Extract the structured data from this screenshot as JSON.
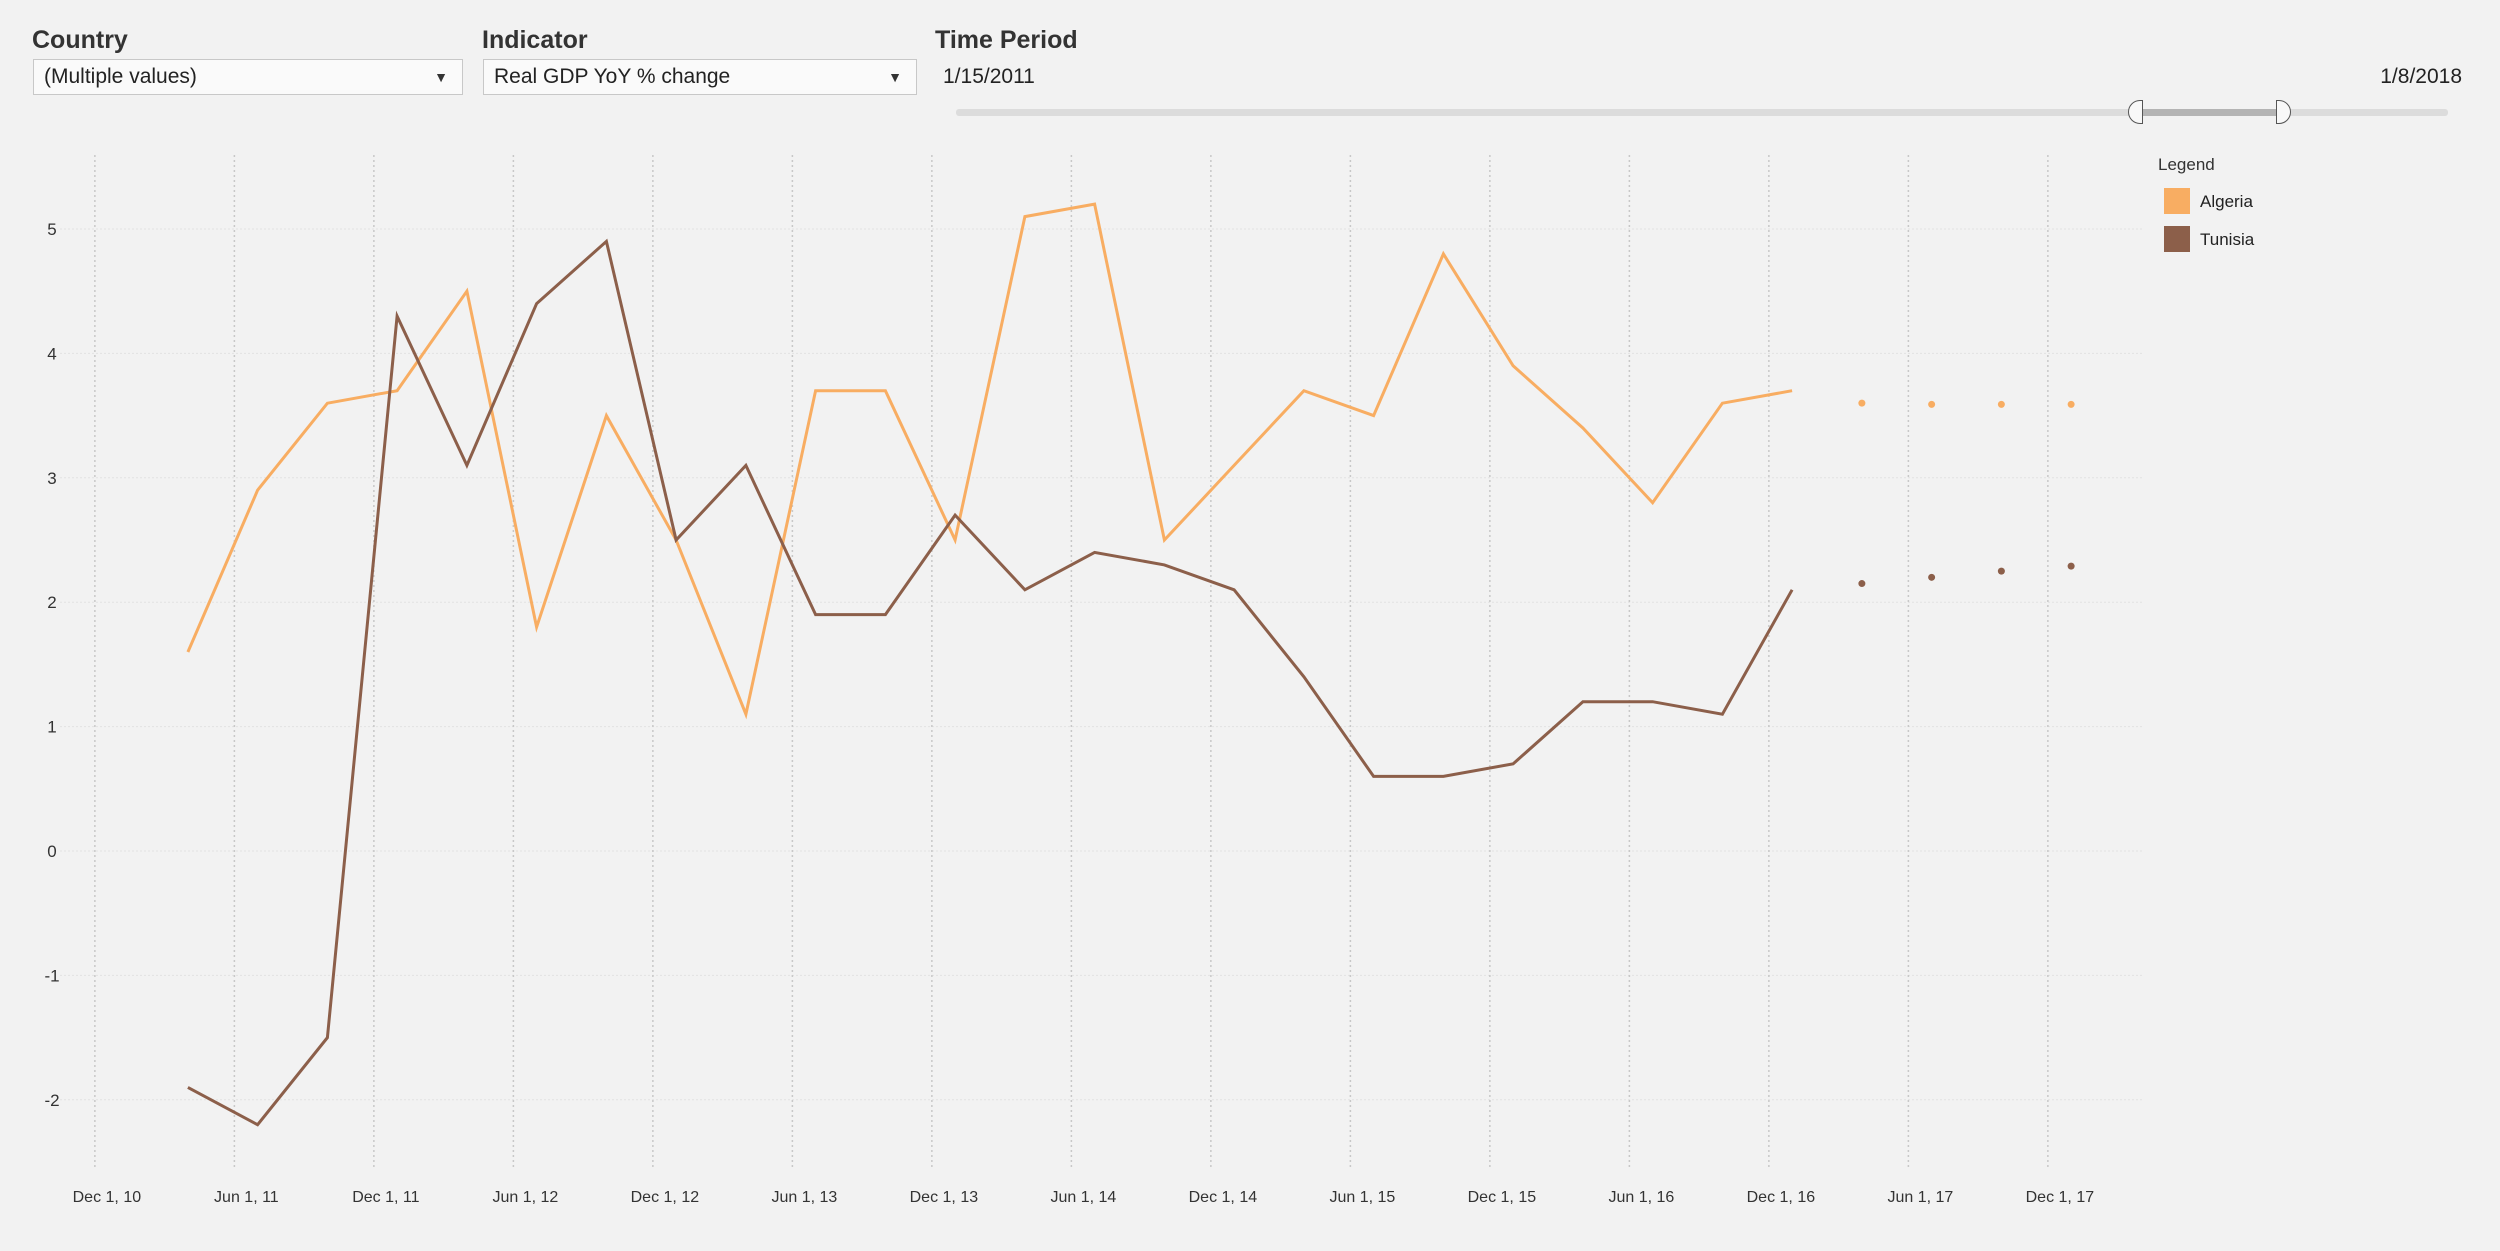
{
  "filters": {
    "country": {
      "label": "Country",
      "value": "(Multiple values)"
    },
    "indicator": {
      "label": "Indicator",
      "value": "Real GDP YoY % change"
    },
    "time_period": {
      "label": "Time Period",
      "start": "1/15/2011",
      "end": "1/8/2018"
    }
  },
  "legend": {
    "title": "Legend",
    "items": [
      {
        "label": "Algeria",
        "color": "#f8ad62"
      },
      {
        "label": "Tunisia",
        "color": "#8c5f4a"
      }
    ]
  },
  "chart_data": {
    "type": "line",
    "title": "",
    "xlabel": "",
    "ylabel": "",
    "ylim": [
      -2.5,
      5.5
    ],
    "yticks": [
      5,
      4,
      3,
      2,
      1,
      0,
      -1,
      -2
    ],
    "xlim_months": [
      -1.5,
      87
    ],
    "xticks": [
      {
        "label": "Dec 1, 10",
        "month": 0
      },
      {
        "label": "Jun 1, 11",
        "month": 6
      },
      {
        "label": "Dec 1, 11",
        "month": 12
      },
      {
        "label": "Jun 1, 12",
        "month": 18
      },
      {
        "label": "Dec 1, 12",
        "month": 24
      },
      {
        "label": "Jun 1, 13",
        "month": 30
      },
      {
        "label": "Dec 1, 13",
        "month": 36
      },
      {
        "label": "Jun 1, 14",
        "month": 42
      },
      {
        "label": "Dec 1, 14",
        "month": 48
      },
      {
        "label": "Jun 1, 15",
        "month": 54
      },
      {
        "label": "Dec 1, 15",
        "month": 60
      },
      {
        "label": "Jun 1, 16",
        "month": 66
      },
      {
        "label": "Dec 1, 16",
        "month": 72
      },
      {
        "label": "Jun 1, 17",
        "month": 78
      },
      {
        "label": "Dec 1, 17",
        "month": 84
      }
    ],
    "series": [
      {
        "name": "Algeria",
        "color": "#f8ad62",
        "x": [
          4,
          7,
          10,
          13,
          16,
          19,
          22,
          25,
          28,
          31,
          34,
          37,
          40,
          43,
          46,
          49,
          52,
          55,
          58,
          61,
          64,
          67,
          70,
          73
        ],
        "values": [
          1.6,
          2.9,
          3.6,
          3.7,
          4.5,
          1.8,
          3.5,
          2.5,
          1.1,
          3.7,
          3.7,
          2.5,
          5.1,
          5.2,
          2.5,
          3.1,
          3.7,
          3.5,
          4.8,
          3.9,
          3.4,
          2.8,
          3.6,
          3.7
        ],
        "forecast_x": [
          76,
          79,
          82,
          85
        ],
        "forecast_values": [
          3.6,
          3.59,
          3.59,
          3.59
        ]
      },
      {
        "name": "Tunisia",
        "color": "#8c5f4a",
        "x": [
          4,
          7,
          10,
          13,
          16,
          19,
          22,
          25,
          28,
          31,
          34,
          37,
          40,
          43,
          46,
          49,
          52,
          55,
          58,
          61,
          64,
          67,
          70,
          73
        ],
        "values": [
          -1.9,
          -2.2,
          -1.5,
          4.3,
          3.1,
          4.4,
          4.9,
          2.5,
          3.1,
          1.9,
          1.9,
          2.7,
          2.1,
          2.4,
          2.3,
          2.1,
          1.4,
          0.6,
          0.6,
          0.7,
          1.2,
          1.2,
          1.1,
          2.1
        ],
        "forecast_x": [
          76,
          79,
          82,
          85
        ],
        "forecast_values": [
          2.15,
          2.2,
          2.25,
          2.29
        ]
      }
    ]
  }
}
